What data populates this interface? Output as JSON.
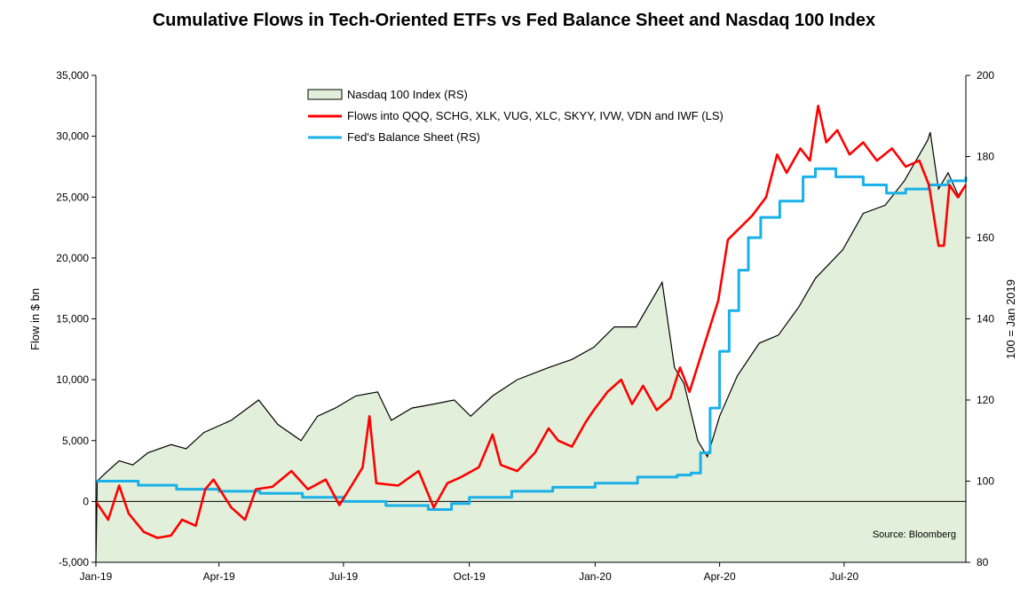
{
  "chart_data": {
    "type": "line",
    "title": "Cumulative Flows in Tech-Oriented ETFs vs Fed Balance Sheet and Nasdaq 100 Index",
    "ylabel": "Flow in $ bn",
    "ylabel_right": "100 = Jan 2019",
    "source": "Source: Bloomberg",
    "grid": false,
    "legend_position": "top-center",
    "x_range": [
      "2019-01-01",
      "2020-09-28"
    ],
    "ylim": [
      -5000,
      35000
    ],
    "ylim_right": [
      80,
      200
    ],
    "x_ticks": [
      {
        "date": "2019-01-01",
        "label": "Jan-19"
      },
      {
        "date": "2019-04-01",
        "label": "Apr-19"
      },
      {
        "date": "2019-07-01",
        "label": "Jul-19"
      },
      {
        "date": "2019-10-01",
        "label": "Oct-19"
      },
      {
        "date": "2020-01-01",
        "label": "Jan-20"
      },
      {
        "date": "2020-04-01",
        "label": "Apr-20"
      },
      {
        "date": "2020-07-01",
        "label": "Jul-20"
      }
    ],
    "y_ticks_left": [
      {
        "value": -5000,
        "label": "-5,000"
      },
      {
        "value": 0,
        "label": "0"
      },
      {
        "value": 5000,
        "label": "5,000"
      },
      {
        "value": 10000,
        "label": "10,000"
      },
      {
        "value": 15000,
        "label": "15,000"
      },
      {
        "value": 20000,
        "label": "20,000"
      },
      {
        "value": 25000,
        "label": "25,000"
      },
      {
        "value": 30000,
        "label": "30,000"
      },
      {
        "value": 35000,
        "label": "35,000"
      }
    ],
    "y_ticks_right": [
      {
        "value": 80,
        "label": "80"
      },
      {
        "value": 100,
        "label": "100"
      },
      {
        "value": 120,
        "label": "120"
      },
      {
        "value": 140,
        "label": "140"
      },
      {
        "value": 160,
        "label": "160"
      },
      {
        "value": 180,
        "label": "180"
      },
      {
        "value": 200,
        "label": "200"
      }
    ],
    "series": [
      {
        "name": "Nasdaq 100 Index  (RS)",
        "axis": "right",
        "style": "area",
        "line_color": "#000000",
        "fill_color": "#e2efda",
        "points": [
          [
            "2019-01-01",
            80
          ],
          [
            "2019-01-02",
            100
          ],
          [
            "2019-01-08",
            102
          ],
          [
            "2019-01-18",
            105
          ],
          [
            "2019-01-28",
            104
          ],
          [
            "2019-02-08",
            107
          ],
          [
            "2019-02-25",
            109
          ],
          [
            "2019-03-08",
            108
          ],
          [
            "2019-03-21",
            112
          ],
          [
            "2019-04-10",
            115
          ],
          [
            "2019-04-30",
            120
          ],
          [
            "2019-05-14",
            114
          ],
          [
            "2019-05-31",
            110
          ],
          [
            "2019-06-12",
            116
          ],
          [
            "2019-06-25",
            118
          ],
          [
            "2019-07-10",
            121
          ],
          [
            "2019-07-26",
            122
          ],
          [
            "2019-08-05",
            115
          ],
          [
            "2019-08-20",
            118
          ],
          [
            "2019-09-05",
            119
          ],
          [
            "2019-09-20",
            120
          ],
          [
            "2019-10-02",
            116
          ],
          [
            "2019-10-18",
            121
          ],
          [
            "2019-11-05",
            125
          ],
          [
            "2019-11-28",
            128
          ],
          [
            "2019-12-15",
            130
          ],
          [
            "2019-12-31",
            133
          ],
          [
            "2020-01-15",
            138
          ],
          [
            "2020-01-31",
            138
          ],
          [
            "2020-02-19",
            149
          ],
          [
            "2020-02-28",
            128
          ],
          [
            "2020-03-06",
            124
          ],
          [
            "2020-03-16",
            110
          ],
          [
            "2020-03-23",
            106
          ],
          [
            "2020-04-01",
            116
          ],
          [
            "2020-04-14",
            126
          ],
          [
            "2020-04-30",
            134
          ],
          [
            "2020-05-14",
            136
          ],
          [
            "2020-05-29",
            143
          ],
          [
            "2020-06-10",
            150
          ],
          [
            "2020-06-30",
            157
          ],
          [
            "2020-07-15",
            166
          ],
          [
            "2020-07-31",
            168
          ],
          [
            "2020-08-14",
            174
          ],
          [
            "2020-08-31",
            184
          ],
          [
            "2020-09-02",
            186
          ],
          [
            "2020-09-08",
            172
          ],
          [
            "2020-09-15",
            176
          ],
          [
            "2020-09-23",
            170
          ],
          [
            "2020-09-28",
            173
          ]
        ]
      },
      {
        "name": "Flows into QQQ, SCHG, XLK, VUG, XLC, SKYY, IVW, VDN and IWF (LS)",
        "axis": "left",
        "style": "line",
        "line_color": "#ff0000",
        "points": [
          [
            "2019-01-01",
            0
          ],
          [
            "2019-01-10",
            -1500
          ],
          [
            "2019-01-18",
            1300
          ],
          [
            "2019-01-25",
            -1000
          ],
          [
            "2019-02-05",
            -2500
          ],
          [
            "2019-02-15",
            -3000
          ],
          [
            "2019-02-25",
            -2800
          ],
          [
            "2019-03-05",
            -1500
          ],
          [
            "2019-03-15",
            -2000
          ],
          [
            "2019-03-22",
            1000
          ],
          [
            "2019-03-28",
            1800
          ],
          [
            "2019-04-10",
            -500
          ],
          [
            "2019-04-20",
            -1500
          ],
          [
            "2019-04-28",
            1000
          ],
          [
            "2019-05-10",
            1200
          ],
          [
            "2019-05-24",
            2500
          ],
          [
            "2019-06-05",
            1000
          ],
          [
            "2019-06-18",
            1800
          ],
          [
            "2019-06-28",
            -300
          ],
          [
            "2019-07-08",
            1500
          ],
          [
            "2019-07-15",
            2800
          ],
          [
            "2019-07-20",
            7000
          ],
          [
            "2019-07-25",
            1500
          ],
          [
            "2019-08-10",
            1300
          ],
          [
            "2019-08-25",
            2500
          ],
          [
            "2019-09-05",
            -500
          ],
          [
            "2019-09-15",
            1500
          ],
          [
            "2019-09-25",
            2000
          ],
          [
            "2019-10-08",
            2800
          ],
          [
            "2019-10-18",
            5500
          ],
          [
            "2019-10-24",
            3000
          ],
          [
            "2019-11-05",
            2500
          ],
          [
            "2019-11-18",
            4000
          ],
          [
            "2019-11-28",
            6000
          ],
          [
            "2019-12-05",
            5000
          ],
          [
            "2019-12-15",
            4500
          ],
          [
            "2019-12-25",
            6500
          ],
          [
            "2019-12-31",
            7500
          ],
          [
            "2020-01-10",
            9000
          ],
          [
            "2020-01-20",
            10000
          ],
          [
            "2020-01-28",
            8000
          ],
          [
            "2020-02-05",
            9500
          ],
          [
            "2020-02-15",
            7500
          ],
          [
            "2020-02-25",
            8500
          ],
          [
            "2020-03-03",
            11000
          ],
          [
            "2020-03-10",
            9000
          ],
          [
            "2020-03-17",
            11500
          ],
          [
            "2020-03-24",
            14000
          ],
          [
            "2020-03-31",
            16500
          ],
          [
            "2020-04-07",
            21500
          ],
          [
            "2020-04-16",
            22500
          ],
          [
            "2020-04-25",
            23500
          ],
          [
            "2020-05-05",
            25000
          ],
          [
            "2020-05-13",
            28500
          ],
          [
            "2020-05-20",
            27000
          ],
          [
            "2020-05-30",
            29000
          ],
          [
            "2020-06-06",
            28000
          ],
          [
            "2020-06-12",
            32500
          ],
          [
            "2020-06-18",
            29500
          ],
          [
            "2020-06-26",
            30500
          ],
          [
            "2020-07-05",
            28500
          ],
          [
            "2020-07-15",
            29500
          ],
          [
            "2020-07-25",
            28000
          ],
          [
            "2020-08-05",
            29000
          ],
          [
            "2020-08-15",
            27500
          ],
          [
            "2020-08-25",
            28000
          ],
          [
            "2020-09-01",
            26000
          ],
          [
            "2020-09-08",
            21000
          ],
          [
            "2020-09-12",
            21000
          ],
          [
            "2020-09-16",
            26000
          ],
          [
            "2020-09-22",
            25000
          ],
          [
            "2020-09-28",
            26000
          ]
        ]
      },
      {
        "name": "Fed's Balance Sheet (RS)",
        "axis": "right",
        "style": "step",
        "line_color": "#1ab0e8",
        "points": [
          [
            "2019-01-01",
            100
          ],
          [
            "2019-02-01",
            99
          ],
          [
            "2019-03-01",
            98
          ],
          [
            "2019-04-01",
            97.5
          ],
          [
            "2019-05-01",
            97
          ],
          [
            "2019-06-01",
            96
          ],
          [
            "2019-07-01",
            95
          ],
          [
            "2019-08-01",
            94
          ],
          [
            "2019-09-01",
            93
          ],
          [
            "2019-09-16",
            93
          ],
          [
            "2019-09-18",
            94.5
          ],
          [
            "2019-10-01",
            96
          ],
          [
            "2019-11-01",
            97.5
          ],
          [
            "2019-12-01",
            98.5
          ],
          [
            "2020-01-01",
            99.5
          ],
          [
            "2020-02-01",
            101
          ],
          [
            "2020-03-01",
            101.5
          ],
          [
            "2020-03-11",
            102
          ],
          [
            "2020-03-18",
            107
          ],
          [
            "2020-03-25",
            118
          ],
          [
            "2020-04-01",
            132
          ],
          [
            "2020-04-08",
            142
          ],
          [
            "2020-04-15",
            152
          ],
          [
            "2020-04-22",
            160
          ],
          [
            "2020-05-01",
            165
          ],
          [
            "2020-05-15",
            169
          ],
          [
            "2020-06-01",
            175
          ],
          [
            "2020-06-10",
            177
          ],
          [
            "2020-06-25",
            175
          ],
          [
            "2020-07-15",
            173
          ],
          [
            "2020-08-01",
            171
          ],
          [
            "2020-08-15",
            172
          ],
          [
            "2020-09-01",
            173
          ],
          [
            "2020-09-15",
            174
          ],
          [
            "2020-09-28",
            175
          ]
        ]
      }
    ]
  }
}
